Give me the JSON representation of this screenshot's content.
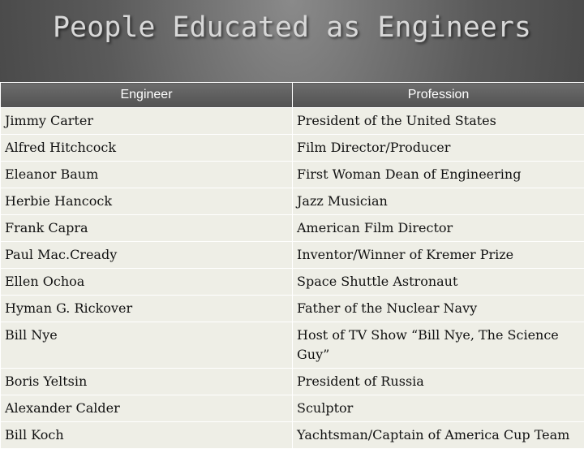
{
  "slide": {
    "title": "People Educated as Engineers"
  },
  "table": {
    "headers": [
      "Engineer",
      "Profession"
    ],
    "rows": [
      [
        "Jimmy Carter",
        "President of the United States"
      ],
      [
        "Alfred Hitchcock",
        "Film Director/Producer"
      ],
      [
        "Eleanor Baum",
        "First Woman Dean of Engineering"
      ],
      [
        "Herbie Hancock",
        "Jazz Musician"
      ],
      [
        "Frank Capra",
        "American Film Director"
      ],
      [
        "Paul Mac.Cready",
        "Inventor/Winner of Kremer Prize"
      ],
      [
        "Ellen Ochoa",
        "Space Shuttle Astronaut"
      ],
      [
        "Hyman G. Rickover",
        "Father of the Nuclear Navy"
      ],
      [
        "Bill Nye",
        "Host of TV Show “Bill Nye, The Science Guy”"
      ],
      [
        "Boris Yeltsin",
        "President of Russia"
      ],
      [
        "Alexander Calder",
        "Sculptor"
      ],
      [
        "Bill Koch",
        "Yachtsman/Captain of America Cup Team"
      ]
    ]
  }
}
